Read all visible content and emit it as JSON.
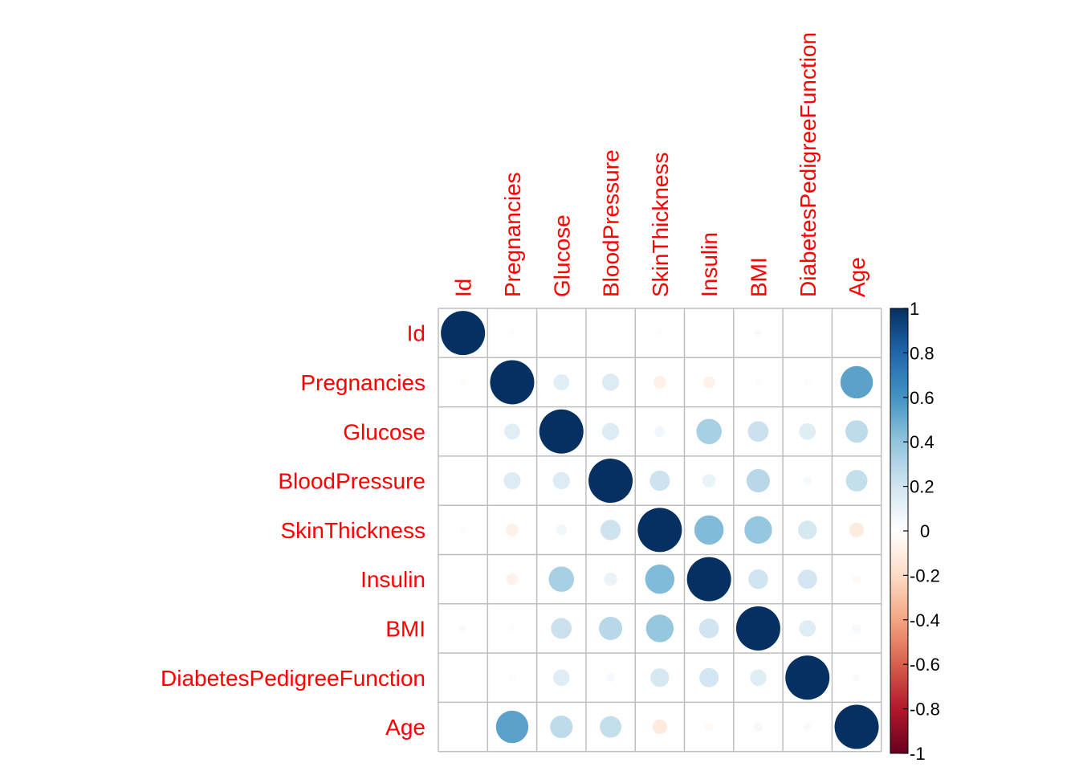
{
  "chart_data": {
    "type": "heatmap",
    "variables": [
      "Id",
      "Pregnancies",
      "Glucose",
      "BloodPressure",
      "SkinThickness",
      "Insulin",
      "BMI",
      "DiabetesPedigreeFunction",
      "Age"
    ],
    "matrix": [
      [
        1.0,
        -0.02,
        0.01,
        0.0,
        0.02,
        0.0,
        0.03,
        0.0,
        0.0
      ],
      [
        -0.02,
        1.0,
        0.13,
        0.15,
        -0.08,
        -0.07,
        0.02,
        -0.02,
        0.54
      ],
      [
        0.01,
        0.13,
        1.0,
        0.15,
        0.06,
        0.33,
        0.22,
        0.14,
        0.26
      ],
      [
        0.0,
        0.15,
        0.15,
        1.0,
        0.21,
        0.09,
        0.28,
        0.04,
        0.24
      ],
      [
        0.02,
        -0.08,
        0.06,
        0.21,
        1.0,
        0.44,
        0.39,
        0.18,
        -0.11
      ],
      [
        0.0,
        -0.07,
        0.33,
        0.09,
        0.44,
        1.0,
        0.2,
        0.19,
        -0.04
      ],
      [
        0.03,
        0.02,
        0.22,
        0.28,
        0.39,
        0.2,
        1.0,
        0.14,
        0.04
      ],
      [
        0.0,
        -0.02,
        0.14,
        0.04,
        0.18,
        0.19,
        0.14,
        1.0,
        0.03
      ],
      [
        0.0,
        0.54,
        0.26,
        0.24,
        -0.11,
        -0.04,
        0.04,
        0.03,
        1.0
      ]
    ],
    "legend": {
      "ticks": [
        "1",
        "0.8",
        "0.6",
        "0.4",
        "0.2",
        "0",
        "-0.2",
        "-0.4",
        "-0.6",
        "-0.8",
        "-1"
      ],
      "range": [
        -1,
        1
      ],
      "placement": "right"
    },
    "colors": {
      "positive_end": "#053061",
      "negative_end": "#67001f",
      "neutral": "#ffffff",
      "label": "#ff0000",
      "grid": "#bebebe"
    },
    "title": "",
    "xlabel": "",
    "ylabel": ""
  }
}
